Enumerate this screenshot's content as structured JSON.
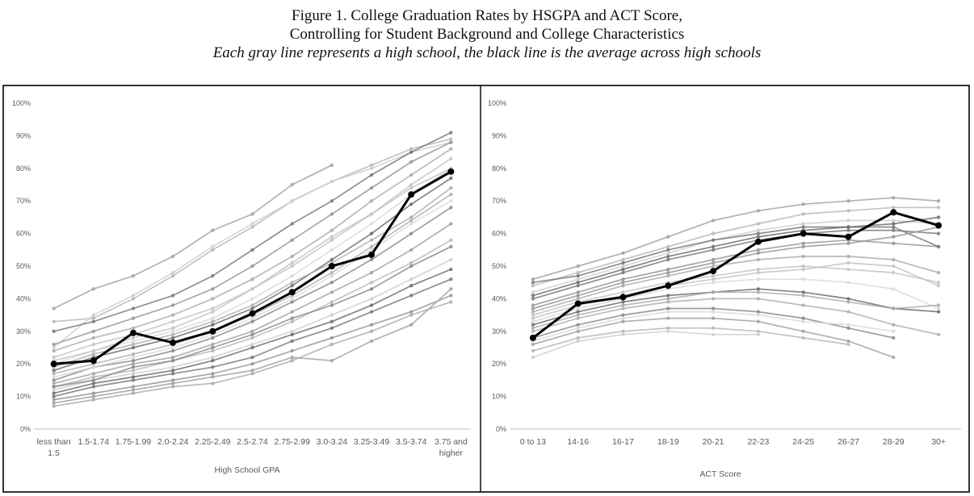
{
  "figure": {
    "title_line1": "Figure 1. College Graduation Rates by HSGPA and ACT Score,",
    "title_line2": "Controlling for Student Background and College Characteristics",
    "subtitle": "Each gray line represents a high school, the black line is the average across high schools"
  },
  "colors": {
    "average": "#000000",
    "schools": "#9a9a9a",
    "axis": "#bfbfbf",
    "tick_text": "#595959"
  },
  "chart_data": [
    {
      "type": "line",
      "xlabel": "High School GPA",
      "ylabel": "",
      "ylim": [
        0,
        100
      ],
      "y_ticks": [
        "0%",
        "10%",
        "20%",
        "30%",
        "40%",
        "50%",
        "60%",
        "70%",
        "80%",
        "90%",
        "100%"
      ],
      "grid": false,
      "categories": [
        [
          "less than",
          "1.5"
        ],
        [
          "1.5-1.74"
        ],
        [
          "1.75-1.99"
        ],
        [
          "2.0-2.24"
        ],
        [
          "2.25-2.49"
        ],
        [
          "2.5-2.74"
        ],
        [
          "2.75-2.99"
        ],
        [
          "3.0-3.24"
        ],
        [
          "3.25-3.49"
        ],
        [
          "3.5-3.74"
        ],
        [
          "3.75 and",
          "higher"
        ]
      ],
      "series": [
        {
          "role": "average",
          "values": [
            20,
            21,
            29.5,
            26.5,
            30,
            35.5,
            42,
            50,
            53.5,
            72,
            79
          ]
        },
        {
          "role": "school",
          "values": [
            37,
            43,
            47,
            53,
            61,
            66,
            75,
            81,
            null,
            null,
            null
          ]
        },
        {
          "role": "school",
          "values": [
            33,
            34,
            40,
            47,
            55,
            62,
            70,
            76,
            81,
            86,
            89
          ]
        },
        {
          "role": "school",
          "values": [
            25,
            35,
            41,
            48,
            56,
            63,
            70,
            76,
            80,
            85,
            88
          ]
        },
        {
          "role": "school",
          "values": [
            30,
            33,
            37,
            41,
            47,
            55,
            63,
            70,
            78,
            85,
            91
          ]
        },
        {
          "role": "school",
          "values": [
            26,
            30,
            34,
            38,
            43,
            50,
            58,
            66,
            74,
            82,
            88
          ]
        },
        {
          "role": "school",
          "values": [
            24,
            28,
            31,
            35,
            40,
            46,
            53,
            61,
            70,
            78,
            86
          ]
        },
        {
          "role": "school",
          "values": [
            22,
            26,
            29,
            33,
            37,
            43,
            50,
            58,
            66,
            75,
            83
          ]
        },
        {
          "role": "school",
          "values": [
            20,
            24,
            27,
            30,
            34,
            40,
            47,
            55,
            63,
            72,
            80
          ]
        },
        {
          "role": "school",
          "values": [
            18,
            22,
            25,
            28,
            32,
            37,
            44,
            52,
            60,
            69,
            77
          ]
        },
        {
          "role": "school",
          "values": [
            17,
            20,
            23,
            26,
            30,
            35,
            41,
            48,
            56,
            64,
            72
          ]
        },
        {
          "role": "school",
          "values": [
            15,
            19,
            21,
            24,
            28,
            33,
            39,
            45,
            52,
            60,
            68
          ]
        },
        {
          "role": "school",
          "values": [
            14,
            17,
            20,
            22,
            26,
            30,
            36,
            42,
            48,
            55,
            63
          ]
        },
        {
          "role": "school",
          "values": [
            13,
            16,
            18,
            21,
            24,
            28,
            33,
            39,
            45,
            51,
            58
          ]
        },
        {
          "role": "school",
          "values": [
            12,
            15,
            17,
            19,
            22,
            26,
            30,
            35,
            40,
            46,
            52
          ]
        },
        {
          "role": "school",
          "values": [
            10,
            13,
            15,
            17,
            19,
            22,
            27,
            31,
            36,
            41,
            46
          ]
        },
        {
          "role": "school",
          "values": [
            9,
            11,
            13,
            15,
            17,
            20,
            24,
            28,
            32,
            36,
            41
          ]
        },
        {
          "role": "school",
          "values": [
            7,
            9,
            11,
            13,
            14,
            17,
            21,
            26,
            30,
            35,
            39
          ]
        },
        {
          "role": "school",
          "values": [
            21,
            24,
            28,
            31,
            36,
            43,
            51,
            59,
            66,
            74,
            80
          ]
        },
        {
          "role": "school",
          "values": [
            16,
            19,
            22,
            25,
            29,
            34,
            40,
            47,
            55,
            63,
            70
          ]
        },
        {
          "role": "school",
          "values": [
            11,
            14,
            16,
            18,
            21,
            25,
            29,
            33,
            38,
            44,
            49
          ]
        },
        {
          "role": "school",
          "values": [
            19,
            23,
            26,
            29,
            33,
            38,
            45,
            51,
            58,
            65,
            74
          ]
        },
        {
          "role": "school",
          "values": [
            13,
            15,
            19,
            21,
            25,
            29,
            34,
            38,
            43,
            50,
            56
          ]
        },
        {
          "role": "school",
          "values": [
            8,
            10,
            12,
            14,
            16,
            18,
            22,
            21,
            27,
            32,
            43
          ]
        }
      ]
    },
    {
      "type": "line",
      "xlabel": "ACT Score",
      "ylabel": "",
      "ylim": [
        0,
        100
      ],
      "y_ticks": [
        "0%",
        "10%",
        "20%",
        "30%",
        "40%",
        "50%",
        "60%",
        "70%",
        "80%",
        "90%",
        "100%"
      ],
      "grid": false,
      "categories": [
        [
          "0 to 13"
        ],
        [
          "14-16"
        ],
        [
          "16-17"
        ],
        [
          "18-19"
        ],
        [
          "20-21"
        ],
        [
          "22-23"
        ],
        [
          "24-25"
        ],
        [
          "26-27"
        ],
        [
          "28-29"
        ],
        [
          "30+"
        ]
      ],
      "series": [
        {
          "role": "average",
          "values": [
            28,
            38.5,
            40.5,
            44,
            48.5,
            57.5,
            60,
            59,
            66.5,
            62.5
          ]
        },
        {
          "role": "school",
          "values": [
            46,
            50,
            54,
            59,
            64,
            67,
            69,
            70,
            71,
            70
          ]
        },
        {
          "role": "school",
          "values": [
            44,
            48,
            52,
            56,
            60,
            63,
            66,
            67,
            68,
            68
          ]
        },
        {
          "role": "school",
          "values": [
            42,
            46,
            50,
            54,
            58,
            61,
            63,
            64,
            64,
            63
          ]
        },
        {
          "role": "school",
          "values": [
            40,
            44,
            48,
            52,
            55,
            58,
            60,
            61,
            61,
            60
          ]
        },
        {
          "role": "school",
          "values": [
            38,
            42,
            46,
            49,
            52,
            55,
            57,
            58,
            57,
            56
          ]
        },
        {
          "role": "school",
          "values": [
            36,
            40,
            44,
            47,
            50,
            52,
            53,
            53,
            52,
            48
          ]
        },
        {
          "role": "school",
          "values": [
            35,
            39,
            42,
            45,
            47,
            49,
            50,
            49,
            48,
            45
          ]
        },
        {
          "role": "school",
          "values": [
            33,
            37,
            40,
            43,
            45,
            46,
            46,
            45,
            43,
            37
          ]
        },
        {
          "role": "school",
          "values": [
            32,
            36,
            39,
            41,
            42,
            43,
            42,
            40,
            37,
            36
          ]
        },
        {
          "role": "school",
          "values": [
            30,
            34,
            37,
            39,
            40,
            40,
            38,
            36,
            32,
            29
          ]
        },
        {
          "role": "school",
          "values": [
            28,
            32,
            35,
            37,
            37,
            36,
            34,
            31,
            28,
            null
          ]
        },
        {
          "role": "school",
          "values": [
            26,
            30,
            33,
            34,
            34,
            33,
            30,
            27,
            22,
            null
          ]
        },
        {
          "role": "school",
          "values": [
            24,
            28,
            30,
            31,
            31,
            30,
            28,
            26,
            null,
            null
          ]
        },
        {
          "role": "school",
          "values": [
            22,
            27,
            29,
            30,
            29,
            29,
            null,
            null,
            null,
            null
          ]
        },
        {
          "role": "school",
          "values": [
            45,
            47,
            51,
            55,
            58,
            60,
            62,
            62,
            62,
            56
          ]
        },
        {
          "role": "school",
          "values": [
            37,
            41,
            45,
            48,
            51,
            54,
            56,
            57,
            59,
            62
          ]
        },
        {
          "role": "school",
          "values": [
            31,
            35,
            38,
            40,
            42,
            42,
            41,
            39,
            37,
            38
          ]
        },
        {
          "role": "school",
          "values": [
            34,
            38,
            41,
            44,
            46,
            48,
            49,
            51,
            50,
            44
          ]
        },
        {
          "role": "school",
          "values": [
            27,
            31,
            34,
            36,
            36,
            35,
            33,
            32,
            30,
            null
          ]
        },
        {
          "role": "school",
          "values": [
            41,
            45,
            49,
            53,
            56,
            59,
            61,
            62,
            63,
            65
          ]
        }
      ]
    }
  ]
}
